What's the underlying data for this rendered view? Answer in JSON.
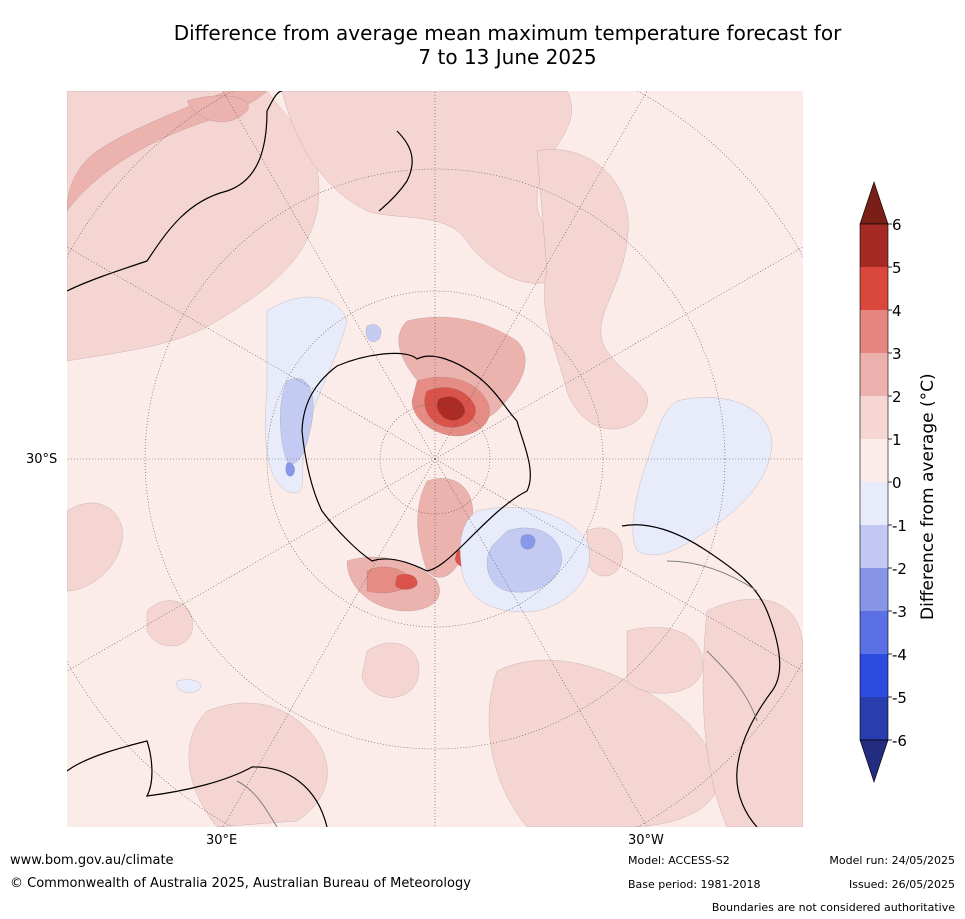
{
  "title": {
    "line1": "Difference from average mean maximum temperature forecast for",
    "line2": "7 to 13 June 2025"
  },
  "map": {
    "projection": "south-polar-stereographic",
    "lat_label": "30°S",
    "lon_labels": {
      "left": "30°E",
      "right": "30°W"
    },
    "colors": {
      "ocean_land_base": "#fbecea",
      "pos1": "#f5d5d2",
      "pos2": "#ecb2ad",
      "pos3": "#e58c85",
      "pos4": "#d9534a",
      "pos5": "#ad2b25",
      "neg1": "#e8ecfa",
      "neg2": "#c4cbf3",
      "neg3": "#8797ea",
      "coast": "#000000",
      "border": "#808080",
      "grid": "#555555"
    }
  },
  "colorbar": {
    "label": "Difference from average (°C)",
    "ticks": [
      "6",
      "5",
      "4",
      "3",
      "2",
      "1",
      "0",
      "-1",
      "-2",
      "-3",
      "-4",
      "-5",
      "-6"
    ],
    "colors": [
      "#a42a23",
      "#d9473d",
      "#e58680",
      "#ecb1ac",
      "#f5d6d3",
      "#fbecea",
      "#e8ebf9",
      "#c2c8f3",
      "#8795e9",
      "#5a70e4",
      "#2c4ce0",
      "#2a3daf"
    ],
    "over_color": "#7a1f17",
    "under_color": "#222c80"
  },
  "footer": {
    "website": "www.bom.gov.au/climate",
    "copyright": "© Commonwealth of Australia 2025, Australian Bureau of Meteorology",
    "model": "Model: ACCESS-S2",
    "base_period": "Base period: 1981-2018",
    "model_run": "Model run: 24/05/2025",
    "issued": "Issued: 26/05/2025",
    "disclaimer": "Boundaries are not considered authoritative"
  }
}
